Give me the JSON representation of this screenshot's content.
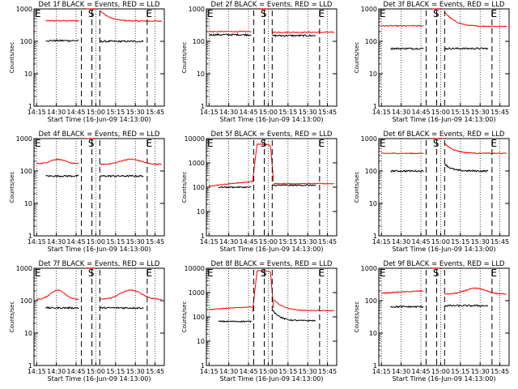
{
  "figure": {
    "x_tick_labels": [
      "14:15",
      "14:30",
      "14:45",
      "15:00",
      "15:15",
      "15:30",
      "15:45"
    ],
    "y_tick_labels": [
      "1",
      "10",
      "100",
      "1000"
    ],
    "y_tick_labels_big": [
      "1",
      "10",
      "100",
      "1000",
      "10000"
    ],
    "xlabel": "Start Time (16-Jun-09 14:13:00)",
    "ylabel": "Counts/sec",
    "marker_labels": [
      "E",
      "S",
      "E"
    ],
    "colors": {
      "events": "#000000",
      "lld": "#ff0000",
      "axes": "#000000"
    }
  },
  "chart_data": [
    {
      "type": "line",
      "title": "Det 1f BLACK = Events, RED = LLD",
      "ylim": [
        1,
        1000
      ],
      "xlim": [
        "14:13",
        "15:52"
      ],
      "xscale": "time",
      "yscale": "log",
      "xlabel": "Start Time (16-Jun-09 14:13:00)",
      "ylabel": "Counts/sec",
      "series": [
        {
          "name": "LLD",
          "color": "#ff0000",
          "segments": [
            {
              "x": [
                "14:22",
                "14:47"
              ],
              "level": 430,
              "shape": "flat"
            },
            {
              "x": [
                "14:53",
                "15:00"
              ],
              "level": 1000,
              "shape": "flat"
            },
            {
              "x": [
                "15:03",
                "15:50"
              ],
              "level": 420,
              "shape": "decay",
              "peak": 900
            }
          ]
        },
        {
          "name": "Events",
          "color": "#000000",
          "segments": [
            {
              "x": [
                "14:22",
                "14:47"
              ],
              "level": 105,
              "shape": "flat"
            },
            {
              "x": [
                "15:03",
                "15:36"
              ],
              "level": 100,
              "shape": "flat"
            }
          ]
        }
      ]
    },
    {
      "type": "line",
      "title": "Det 2f BLACK = Events, RED = LLD",
      "ylim": [
        1,
        1000
      ],
      "xlim": [
        "14:13",
        "15:52"
      ],
      "xscale": "time",
      "yscale": "log",
      "xlabel": "Start Time (16-Jun-09 14:13:00)",
      "ylabel": "Counts/sec",
      "series": [
        {
          "name": "LLD",
          "color": "#ff0000",
          "segments": [
            {
              "x": [
                "14:15",
                "14:47"
              ],
              "level": 200,
              "shape": "flat"
            },
            {
              "x": [
                "14:53",
                "15:00"
              ],
              "level": 1000,
              "shape": "flat"
            },
            {
              "x": [
                "15:03",
                "15:50"
              ],
              "level": 190,
              "shape": "flat"
            }
          ]
        },
        {
          "name": "Events",
          "color": "#000000",
          "segments": [
            {
              "x": [
                "14:15",
                "14:47"
              ],
              "level": 160,
              "shape": "flat"
            },
            {
              "x": [
                "15:03",
                "15:36"
              ],
              "level": 150,
              "shape": "flat"
            }
          ]
        }
      ]
    },
    {
      "type": "line",
      "title": "Det 3f BLACK = Events, RED = LLD",
      "ylim": [
        1,
        1000
      ],
      "xlim": [
        "14:13",
        "15:52"
      ],
      "xscale": "time",
      "yscale": "log",
      "xlabel": "Start Time (16-Jun-09 14:13:00)",
      "ylabel": "Counts/sec",
      "series": [
        {
          "name": "LLD",
          "color": "#ff0000",
          "segments": [
            {
              "x": [
                "14:15",
                "14:47"
              ],
              "level": 300,
              "shape": "flat"
            },
            {
              "x": [
                "14:53",
                "15:00"
              ],
              "level": 1000,
              "shape": "flat"
            },
            {
              "x": [
                "15:03",
                "15:50"
              ],
              "level": 290,
              "shape": "decay",
              "peak": 800
            }
          ]
        },
        {
          "name": "Events",
          "color": "#000000",
          "segments": [
            {
              "x": [
                "14:22",
                "14:47"
              ],
              "level": 60,
              "shape": "flat"
            },
            {
              "x": [
                "15:03",
                "15:36"
              ],
              "level": 60,
              "shape": "flat"
            }
          ]
        }
      ]
    },
    {
      "type": "line",
      "title": "Det 4f BLACK = Events, RED = LLD",
      "ylim": [
        1,
        1000
      ],
      "xlim": [
        "14:13",
        "15:52"
      ],
      "xscale": "time",
      "yscale": "log",
      "xlabel": "Start Time (16-Jun-09 14:13:00)",
      "ylabel": "Counts/sec",
      "series": [
        {
          "name": "LLD",
          "color": "#ff0000",
          "segments": [
            {
              "x": [
                "14:15",
                "14:47"
              ],
              "level": 170,
              "shape": "hump",
              "peak": 230
            },
            {
              "x": [
                "14:53",
                "15:00"
              ],
              "level": 1000,
              "shape": "flat"
            },
            {
              "x": [
                "15:03",
                "15:50"
              ],
              "level": 160,
              "shape": "hump",
              "peak": 230
            }
          ]
        },
        {
          "name": "Events",
          "color": "#000000",
          "segments": [
            {
              "x": [
                "14:22",
                "14:47"
              ],
              "level": 70,
              "shape": "flat"
            },
            {
              "x": [
                "15:03",
                "15:36"
              ],
              "level": 70,
              "shape": "flat"
            }
          ]
        }
      ]
    },
    {
      "type": "line",
      "title": "Det 5f BLACK = Events, RED = LLD",
      "ylim": [
        1,
        10000
      ],
      "xlim": [
        "14:13",
        "15:52"
      ],
      "xscale": "time",
      "yscale": "log",
      "xlabel": "Start Time (16-Jun-09 14:13:00)",
      "ylabel": "Counts/sec",
      "series": [
        {
          "name": "LLD",
          "color": "#ff0000",
          "segments": [
            {
              "x": [
                "14:15",
                "14:48"
              ],
              "level": 110,
              "shape": "rise",
              "peak": 170
            },
            {
              "x": [
                "14:48",
                "15:04"
              ],
              "level": 6000,
              "shape": "spike"
            },
            {
              "x": [
                "15:04",
                "15:50"
              ],
              "level": 140,
              "shape": "flat"
            }
          ]
        },
        {
          "name": "Events",
          "color": "#000000",
          "segments": [
            {
              "x": [
                "14:22",
                "14:47"
              ],
              "level": 100,
              "shape": "flat"
            },
            {
              "x": [
                "15:03",
                "15:36"
              ],
              "level": 120,
              "shape": "flat"
            }
          ]
        }
      ]
    },
    {
      "type": "line",
      "title": "Det 6f BLACK = Events, RED = LLD",
      "ylim": [
        1,
        1000
      ],
      "xlim": [
        "14:13",
        "15:52"
      ],
      "xscale": "time",
      "yscale": "log",
      "xlabel": "Start Time (16-Jun-09 14:13:00)",
      "ylabel": "Counts/sec",
      "series": [
        {
          "name": "LLD",
          "color": "#ff0000",
          "segments": [
            {
              "x": [
                "14:15",
                "14:47"
              ],
              "level": 350,
              "shape": "flat"
            },
            {
              "x": [
                "14:53",
                "15:00"
              ],
              "level": 1000,
              "shape": "flat"
            },
            {
              "x": [
                "15:03",
                "15:50"
              ],
              "level": 350,
              "shape": "decay",
              "peak": 700
            }
          ]
        },
        {
          "name": "Events",
          "color": "#000000",
          "segments": [
            {
              "x": [
                "14:22",
                "14:47"
              ],
              "level": 100,
              "shape": "flat"
            },
            {
              "x": [
                "15:03",
                "15:36"
              ],
              "level": 100,
              "shape": "decay",
              "peak": 170
            }
          ]
        }
      ]
    },
    {
      "type": "line",
      "title": "Det 7f BLACK = Events, RED = LLD",
      "ylim": [
        1,
        1000
      ],
      "xlim": [
        "14:13",
        "15:52"
      ],
      "xscale": "time",
      "yscale": "log",
      "xlabel": "Start Time (16-Jun-09 14:13:00)",
      "ylabel": "Counts/sec",
      "series": [
        {
          "name": "LLD",
          "color": "#ff0000",
          "segments": [
            {
              "x": [
                "14:15",
                "14:47"
              ],
              "level": 110,
              "shape": "hump",
              "peak": 210
            },
            {
              "x": [
                "14:53",
                "15:00"
              ],
              "level": 1000,
              "shape": "flat"
            },
            {
              "x": [
                "15:03",
                "15:50"
              ],
              "level": 110,
              "shape": "hump",
              "peak": 210
            }
          ]
        },
        {
          "name": "Events",
          "color": "#000000",
          "segments": [
            {
              "x": [
                "14:22",
                "14:47"
              ],
              "level": 60,
              "shape": "flat"
            },
            {
              "x": [
                "15:03",
                "15:36"
              ],
              "level": 60,
              "shape": "flat"
            }
          ]
        }
      ]
    },
    {
      "type": "line",
      "title": "Det 8f BLACK = Events, RED = LLD",
      "ylim": [
        1,
        10000
      ],
      "xlim": [
        "14:13",
        "15:52"
      ],
      "xscale": "time",
      "yscale": "log",
      "xlabel": "Start Time (16-Jun-09 14:13:00)",
      "ylabel": "Counts/sec",
      "series": [
        {
          "name": "LLD",
          "color": "#ff0000",
          "segments": [
            {
              "x": [
                "14:15",
                "14:48"
              ],
              "level": 200,
              "shape": "rise",
              "peak": 260
            },
            {
              "x": [
                "14:48",
                "15:04"
              ],
              "level": 8000,
              "shape": "spike"
            },
            {
              "x": [
                "15:04",
                "15:50"
              ],
              "level": 180,
              "shape": "decay",
              "peak": 500
            }
          ]
        },
        {
          "name": "Events",
          "color": "#000000",
          "segments": [
            {
              "x": [
                "14:22",
                "14:47"
              ],
              "level": 65,
              "shape": "flat"
            },
            {
              "x": [
                "15:03",
                "15:36"
              ],
              "level": 70,
              "shape": "decay",
              "peak": 200
            }
          ]
        }
      ]
    },
    {
      "type": "line",
      "title": "Det 9f BLACK = Events, RED = LLD",
      "ylim": [
        1,
        1000
      ],
      "xlim": [
        "14:13",
        "15:52"
      ],
      "xscale": "time",
      "yscale": "log",
      "xlabel": "Start Time (16-Jun-09 14:13:00)",
      "ylabel": "Counts/sec",
      "series": [
        {
          "name": "LLD",
          "color": "#ff0000",
          "segments": [
            {
              "x": [
                "14:15",
                "14:47"
              ],
              "level": 170,
              "shape": "rise",
              "peak": 200
            },
            {
              "x": [
                "14:53",
                "15:00"
              ],
              "level": 1000,
              "shape": "flat"
            },
            {
              "x": [
                "15:03",
                "15:50"
              ],
              "level": 160,
              "shape": "hump",
              "peak": 240
            }
          ]
        },
        {
          "name": "Events",
          "color": "#000000",
          "segments": [
            {
              "x": [
                "14:22",
                "14:47"
              ],
              "level": 65,
              "shape": "flat"
            },
            {
              "x": [
                "15:03",
                "15:36"
              ],
              "level": 70,
              "shape": "flat"
            }
          ]
        }
      ]
    }
  ]
}
